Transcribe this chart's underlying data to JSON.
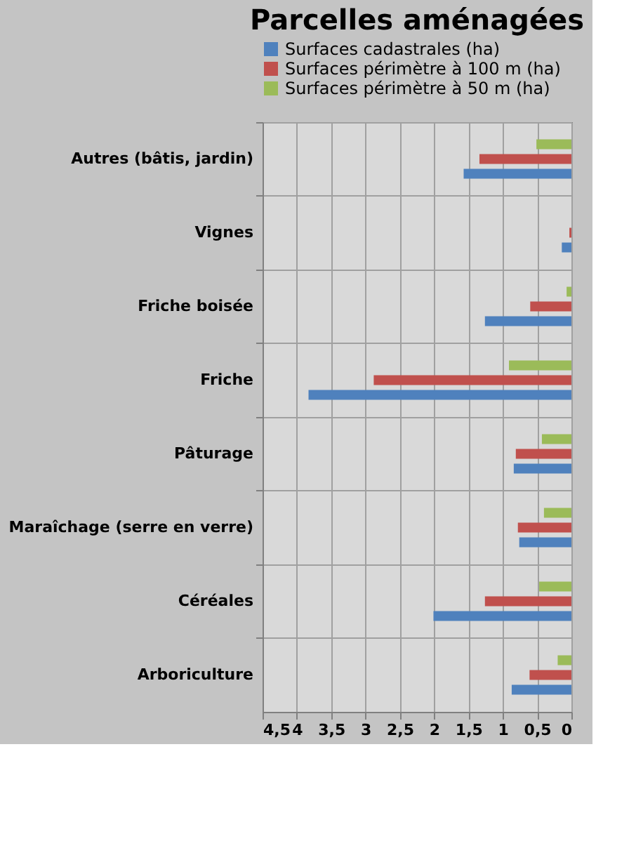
{
  "chart_data": {
    "type": "bar",
    "orientation": "horizontal",
    "title": "Parcelles aménagées",
    "categories": [
      "Autres (bâtis, jardin)",
      "Vignes",
      "Friche boisée",
      "Friche",
      "Pâturage",
      "Maraîchage (serre en verre)",
      "Céréales",
      "Arboriculture"
    ],
    "series": [
      {
        "name": "Surfaces cadastrales (ha)",
        "color": "#4f81bd",
        "values": [
          1.57,
          0.14,
          1.26,
          3.83,
          0.84,
          0.76,
          2.01,
          0.87
        ]
      },
      {
        "name": "Surfaces périmètre à 100 m (ha)",
        "color": "#c0504d",
        "values": [
          1.34,
          0.03,
          0.6,
          2.88,
          0.81,
          0.78,
          1.26,
          0.61
        ]
      },
      {
        "name": "Surfaces périmètre à 50 m (ha)",
        "color": "#9bbb59",
        "values": [
          0.51,
          0,
          0.07,
          0.91,
          0.43,
          0.4,
          0.47,
          0.2
        ]
      }
    ],
    "xlim": [
      4.5,
      0
    ],
    "xticks": [
      {
        "value": 4.5,
        "label": "4,5"
      },
      4,
      {
        "value": 3.5,
        "label": "3,5"
      },
      3,
      {
        "value": 2.5,
        "label": "2,5"
      },
      2,
      {
        "value": 1.5,
        "label": "1,5"
      },
      1,
      {
        "value": 0.5,
        "label": "0,5"
      },
      0
    ],
    "grid": true,
    "legend": "top"
  }
}
